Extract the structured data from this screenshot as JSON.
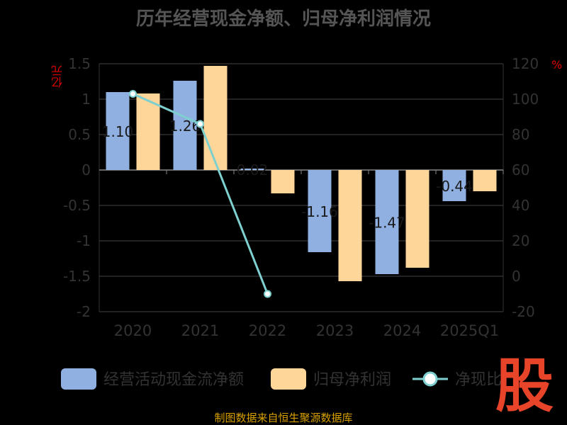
{
  "title": "历年经营现金净额、归母净利润情况",
  "source": "制图数据来自恒生聚源数据库",
  "watermark": "股",
  "colors": {
    "background": "#000000",
    "cash_flow": "#8fb0e0",
    "net_profit": "#ffd699",
    "ratio_line": "#7ecfcf",
    "axis_text": "#333333",
    "axis_unit": "#e00000",
    "grid": "#444444"
  },
  "chart_data": {
    "type": "bar",
    "title": "历年经营现金净额、归母净利润情况",
    "categories": [
      "2020",
      "2021",
      "2022",
      "2023",
      "2024",
      "2025Q1"
    ],
    "ylabel_left": "亿元",
    "ylabel_right": "%",
    "ylim_left": [
      -2,
      1.5
    ],
    "ylim_right": [
      -20,
      120
    ],
    "yticks_left": [
      "1.5",
      "1",
      "0.5",
      "0",
      "-0.5",
      "-1",
      "-1.5",
      "-2"
    ],
    "yticks_right": [
      "120",
      "100",
      "80",
      "60",
      "40",
      "20",
      "0",
      "-20"
    ],
    "grid": true,
    "legend_position": "bottom",
    "series": [
      {
        "name": "经营活动现金流净额",
        "type": "bar",
        "axis": "left",
        "color": "#8fb0e0",
        "values": [
          1.1,
          1.26,
          0.02,
          -1.16,
          -1.47,
          -0.44
        ],
        "labels": [
          "1.10",
          "1.26",
          "0.02",
          "-1.16",
          "-1.47",
          "-0.44"
        ]
      },
      {
        "name": "归母净利润",
        "type": "bar",
        "axis": "left",
        "color": "#ffd699",
        "values": [
          1.08,
          1.47,
          -0.33,
          -1.57,
          -1.38,
          -0.3
        ]
      },
      {
        "name": "净现比",
        "type": "line",
        "axis": "right",
        "color": "#7ecfcf",
        "values": [
          103,
          86,
          -10,
          null,
          null,
          null
        ]
      }
    ]
  }
}
